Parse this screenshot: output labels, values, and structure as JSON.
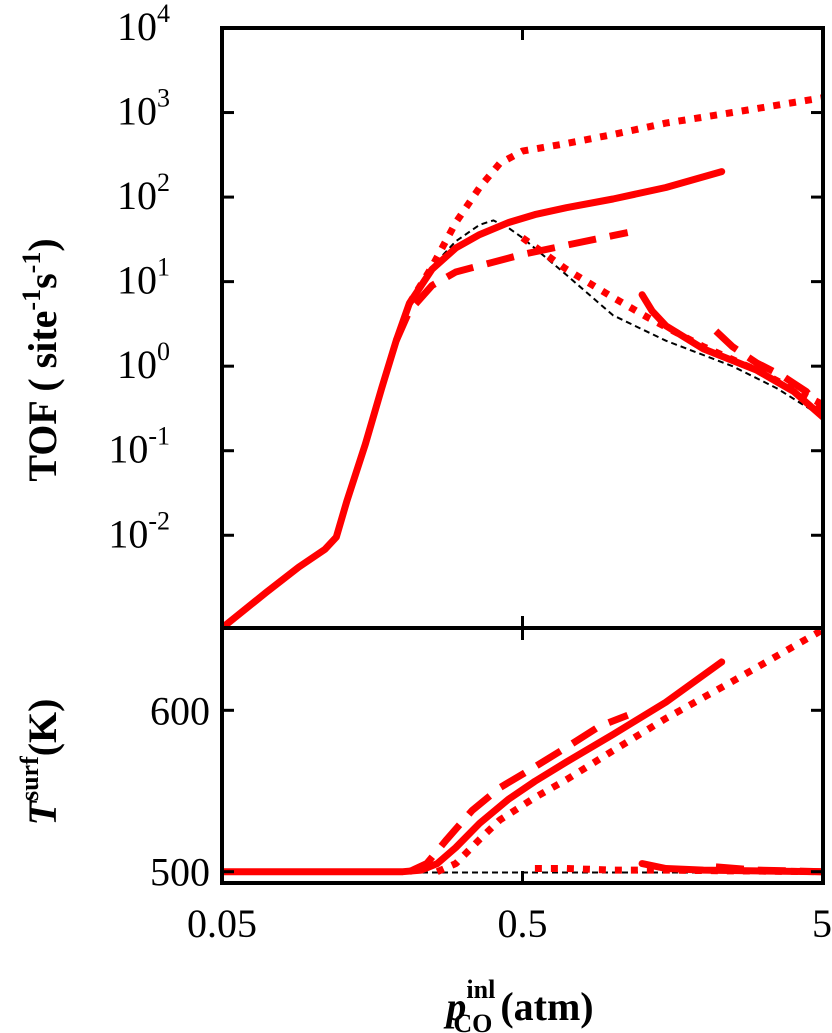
{
  "chart_data": [
    {
      "type": "line",
      "panel": "top",
      "ylabel": "TOF ( site-1s-1)",
      "ylabel_parts": {
        "main": "TOF ( site",
        "sup1": "-1",
        "mid": "s",
        "sup2": "-1",
        "end": ")"
      },
      "yscale": "log",
      "xscale": "log",
      "xlim": [
        0.05,
        5
      ],
      "ylim": [
        0.0008,
        10000
      ],
      "yticks": [
        {
          "value": 0.01,
          "base": "10",
          "exp": "-2"
        },
        {
          "value": 0.1,
          "base": "10",
          "exp": "-1"
        },
        {
          "value": 1,
          "base": "10",
          "exp": "0"
        },
        {
          "value": 10,
          "base": "10",
          "exp": "1"
        },
        {
          "value": 100,
          "base": "10",
          "exp": "2"
        },
        {
          "value": 1000,
          "base": "10",
          "exp": "3"
        },
        {
          "value": 10000,
          "base": "10",
          "exp": "4"
        }
      ],
      "series": [
        {
          "style": "thin-dashed-black",
          "color": "#000000",
          "points": [
            [
              0.05,
              0.0008
            ],
            [
              0.07,
              0.0021
            ],
            [
              0.09,
              0.0042
            ],
            [
              0.11,
              0.0068
            ],
            [
              0.12,
              0.0095
            ],
            [
              0.13,
              0.025
            ],
            [
              0.15,
              0.12
            ],
            [
              0.17,
              0.55
            ],
            [
              0.19,
              2.0
            ],
            [
              0.21,
              5.2
            ],
            [
              0.25,
              15
            ],
            [
              0.3,
              30
            ],
            [
              0.36,
              47
            ],
            [
              0.4,
              53
            ],
            [
              0.45,
              43
            ],
            [
              0.5,
              33
            ],
            [
              0.7,
              12
            ],
            [
              1.0,
              4.0
            ],
            [
              1.5,
              2.0
            ],
            [
              2.5,
              1.0
            ],
            [
              3.5,
              0.55
            ],
            [
              5,
              0.25
            ]
          ]
        },
        {
          "style": "solid",
          "color": "#ff0000",
          "points": [
            [
              0.05,
              0.0008
            ],
            [
              0.07,
              0.0021
            ],
            [
              0.09,
              0.0042
            ],
            [
              0.11,
              0.0068
            ],
            [
              0.12,
              0.0095
            ],
            [
              0.13,
              0.025
            ],
            [
              0.15,
              0.12
            ],
            [
              0.17,
              0.55
            ],
            [
              0.19,
              2.0
            ],
            [
              0.21,
              5.5
            ],
            [
              0.25,
              14
            ],
            [
              0.3,
              25
            ],
            [
              0.36,
              36
            ],
            [
              0.45,
              50
            ],
            [
              0.55,
              62
            ],
            [
              0.7,
              75
            ],
            [
              1.0,
              95
            ],
            [
              1.5,
              130
            ],
            [
              2.3,
              200
            ]
          ]
        },
        {
          "style": "dashed",
          "color": "#ff0000",
          "points": [
            [
              0.19,
              2.0
            ],
            [
              0.21,
              4.5
            ],
            [
              0.25,
              9
            ],
            [
              0.3,
              13
            ],
            [
              0.4,
              17
            ],
            [
              0.5,
              21
            ],
            [
              0.7,
              27
            ],
            [
              1.0,
              35
            ],
            [
              1.12,
              38
            ]
          ]
        },
        {
          "style": "dotted",
          "color": "#ff0000",
          "points": [
            [
              0.21,
              5.5
            ],
            [
              0.25,
              15
            ],
            [
              0.3,
              50
            ],
            [
              0.36,
              130
            ],
            [
              0.42,
              250
            ],
            [
              0.5,
              350
            ],
            [
              0.7,
              430
            ],
            [
              1.0,
              550
            ],
            [
              1.5,
              750
            ],
            [
              2.5,
              1000
            ],
            [
              5,
              1500
            ]
          ]
        },
        {
          "style": "solid",
          "color": "#ff0000",
          "points": [
            [
              1.25,
              7.0
            ],
            [
              1.35,
              4.5
            ],
            [
              1.5,
              3.0
            ],
            [
              2.0,
              1.6
            ],
            [
              3.0,
              0.9
            ],
            [
              4.0,
              0.5
            ],
            [
              5,
              0.25
            ]
          ]
        },
        {
          "style": "dashed",
          "color": "#ff0000",
          "points": [
            [
              2.2,
              2.6
            ],
            [
              2.5,
              1.7
            ],
            [
              3.0,
              1.1
            ],
            [
              3.7,
              0.75
            ],
            [
              4.4,
              0.5
            ],
            [
              5,
              0.3
            ]
          ]
        },
        {
          "style": "dotted",
          "color": "#ff0000",
          "points": [
            [
              0.5,
              33
            ],
            [
              0.7,
              14
            ],
            [
              1.0,
              6.5
            ],
            [
              1.3,
              3.8
            ],
            [
              2.0,
              1.7
            ],
            [
              3.0,
              0.9
            ],
            [
              5,
              0.35
            ]
          ]
        }
      ]
    },
    {
      "type": "line",
      "panel": "bottom",
      "ylabel_parts": {
        "main": "T",
        "sup": "surf",
        "unit": "(K)"
      },
      "xscale": "log",
      "xlim": [
        0.05,
        5
      ],
      "ylim": [
        493,
        651
      ],
      "yticks": [
        {
          "value": 500,
          "label": "500"
        },
        {
          "value": 600,
          "label": "600"
        }
      ],
      "xticks": [
        {
          "value": 0.05,
          "label": "0.05"
        },
        {
          "value": 0.5,
          "label": "0.5"
        },
        {
          "value": 5,
          "label": "5"
        }
      ],
      "xlabel_parts": {
        "main": "p",
        "sup": "inl",
        "sub": "CO",
        "unit": "(atm)"
      },
      "series": [
        {
          "style": "thin-dashed-black",
          "color": "#000000",
          "points": [
            [
              0.05,
              499.5
            ],
            [
              5,
              499.5
            ]
          ]
        },
        {
          "style": "solid",
          "color": "#ff0000",
          "points": [
            [
              0.05,
              500
            ],
            [
              0.2,
              500
            ],
            [
              0.23,
              501
            ],
            [
              0.26,
              505
            ],
            [
              0.3,
              515
            ],
            [
              0.36,
              530
            ],
            [
              0.45,
              545
            ],
            [
              0.55,
              556
            ],
            [
              0.7,
              568
            ],
            [
              1.0,
              585
            ],
            [
              1.5,
              605
            ],
            [
              2.3,
              630
            ]
          ]
        },
        {
          "style": "dashed",
          "color": "#ff0000",
          "points": [
            [
              0.21,
              500
            ],
            [
              0.24,
              505
            ],
            [
              0.28,
              520
            ],
            [
              0.34,
              538
            ],
            [
              0.42,
              552
            ],
            [
              0.55,
              565
            ],
            [
              0.7,
              577
            ],
            [
              0.9,
              590
            ],
            [
              1.12,
              597
            ]
          ]
        },
        {
          "style": "dotted",
          "color": "#ff0000",
          "points": [
            [
              0.26,
              500
            ],
            [
              0.3,
              505
            ],
            [
              0.36,
              520
            ],
            [
              0.42,
              532
            ],
            [
              0.55,
              546
            ],
            [
              0.7,
              557
            ],
            [
              1.0,
              575
            ],
            [
              1.5,
              595
            ],
            [
              2.5,
              618
            ],
            [
              5,
              650
            ]
          ]
        },
        {
          "style": "solid",
          "color": "#ff0000",
          "points": [
            [
              1.25,
              505
            ],
            [
              1.5,
              502
            ],
            [
              2.0,
              501
            ],
            [
              3.0,
              500.5
            ],
            [
              5,
              500
            ]
          ]
        },
        {
          "style": "dashed",
          "color": "#ff0000",
          "points": [
            [
              2.2,
              503
            ],
            [
              3.0,
              501
            ],
            [
              5,
              500
            ]
          ]
        },
        {
          "style": "dotted",
          "color": "#ff0000",
          "points": [
            [
              0.55,
              502
            ],
            [
              0.7,
              502
            ],
            [
              1.0,
              501
            ],
            [
              1.5,
              501
            ],
            [
              2.5,
              500.5
            ],
            [
              5,
              500
            ]
          ]
        }
      ]
    }
  ]
}
